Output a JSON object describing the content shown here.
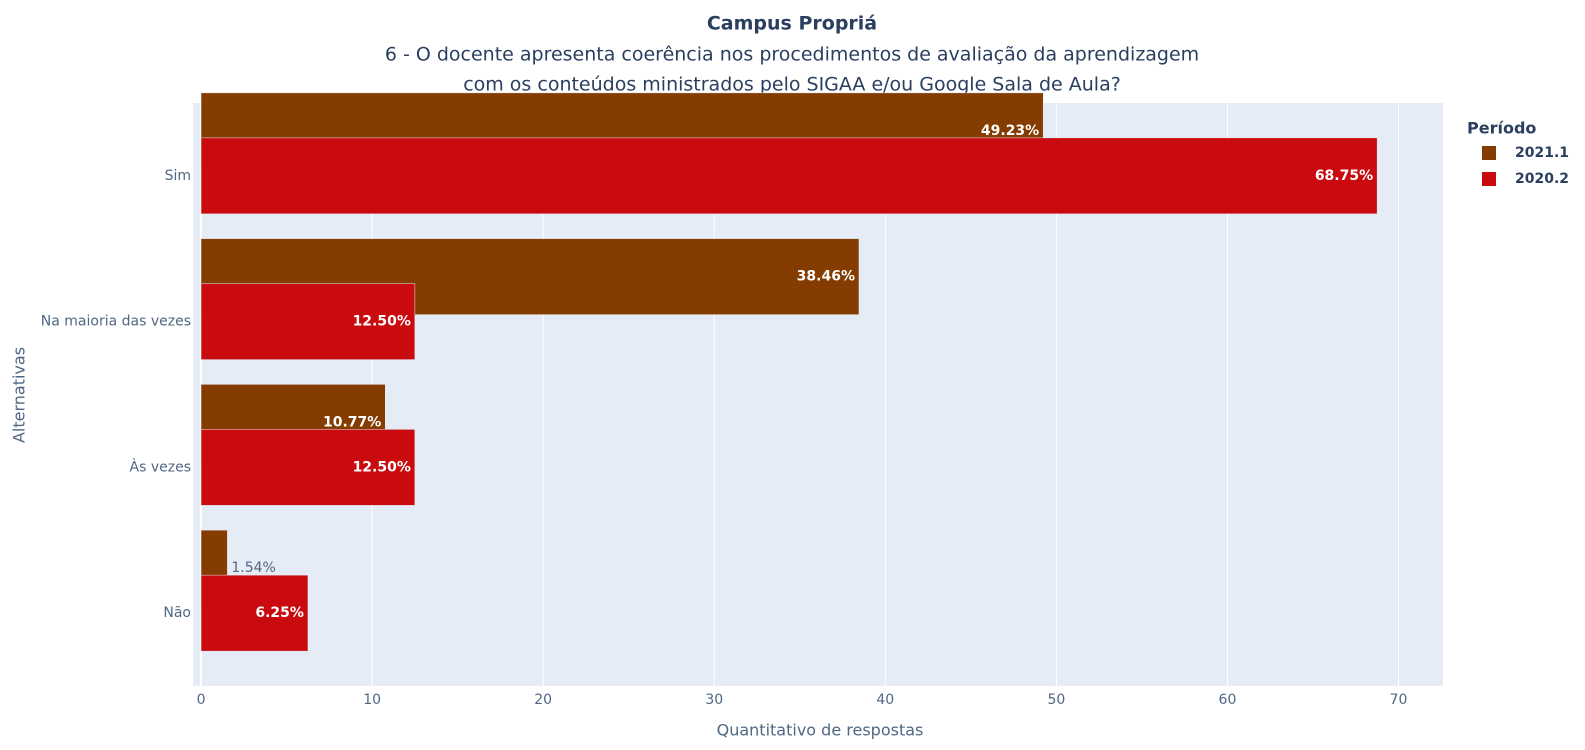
{
  "chart_data": {
    "type": "bar",
    "orientation": "horizontal",
    "barmode": "overlay",
    "title": "Campus Propriá",
    "subtitle": [
      "6 - O docente apresenta coerência nos procedimentos de avaliação da aprendizagem",
      "com os conteúdos ministrados pelo SIGAA e/ou Google Sala de Aula?"
    ],
    "x_label": "Quantitativo de respostas",
    "y_label": "Alternativas",
    "legend_title": "Período",
    "legend_position": "right",
    "grid": true,
    "categories": [
      "Sim",
      "Na maioria das vezes",
      "Às vezes",
      "Não"
    ],
    "series": [
      {
        "name": "2021.1",
        "color": "#843c00",
        "values": [
          49.23,
          38.46,
          10.77,
          1.54
        ],
        "value_labels": [
          "49.23%",
          "38.46%",
          "10.77%",
          "1.54%"
        ]
      },
      {
        "name": "2020.2",
        "color": "#c90b0f",
        "values": [
          68.75,
          12.5,
          12.5,
          6.25
        ],
        "value_labels": [
          "68.75%",
          "12.50%",
          "12.50%",
          "6.25%"
        ]
      }
    ],
    "xlim": [
      -0.47,
      72.6
    ],
    "xticks": [
      0,
      10,
      20,
      30,
      40,
      50,
      60,
      70
    ]
  }
}
